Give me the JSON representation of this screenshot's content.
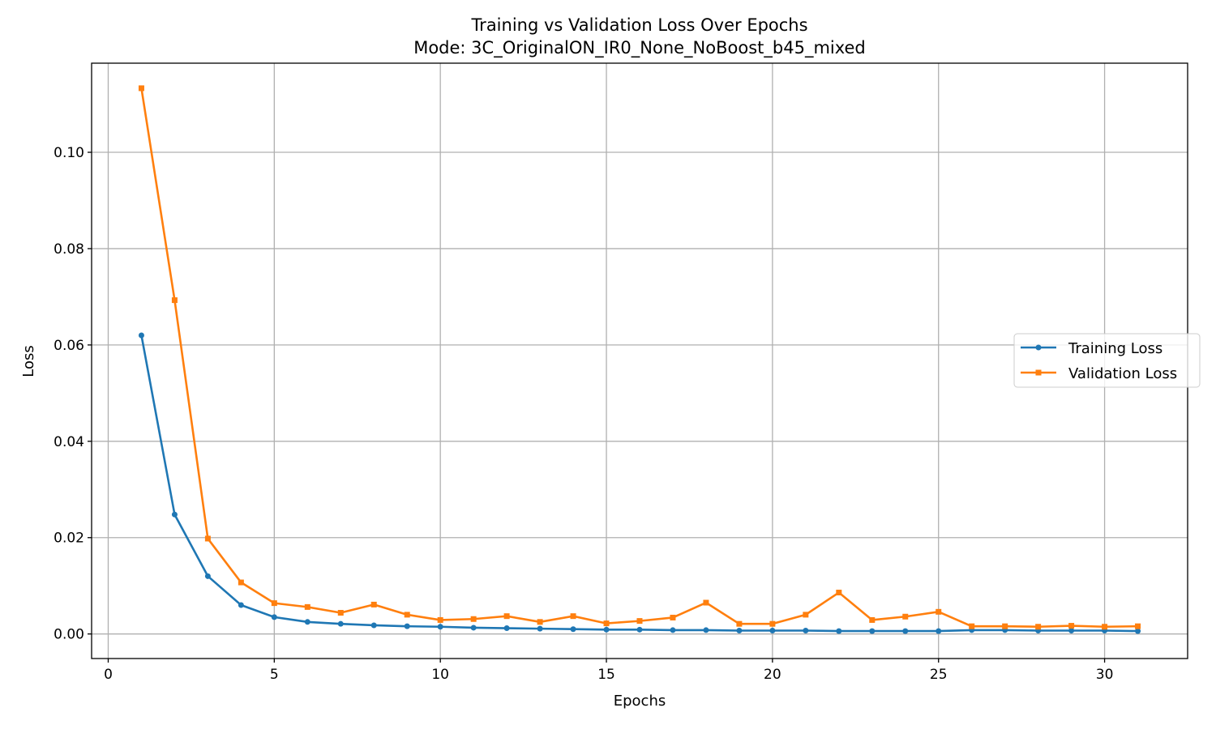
{
  "chart_data": {
    "type": "line",
    "title": "Training vs Validation Loss Over Epochs",
    "subtitle": "Mode: 3C_OriginalON_IR0_None_NoBoost_b45_mixed",
    "xlabel": "Epochs",
    "ylabel": "Loss",
    "xlim": [
      -0.5,
      32.5
    ],
    "ylim": [
      -0.0051,
      0.1185
    ],
    "xticks": [
      0,
      5,
      10,
      15,
      20,
      25,
      30
    ],
    "xtick_labels": [
      "0",
      "5",
      "10",
      "15",
      "20",
      "25",
      "30"
    ],
    "yticks": [
      0.0,
      0.02,
      0.04,
      0.06,
      0.08,
      0.1
    ],
    "ytick_labels": [
      "0.00",
      "0.02",
      "0.04",
      "0.06",
      "0.08",
      "0.10"
    ],
    "grid": true,
    "legend_position": "center-right",
    "x": [
      1,
      2,
      3,
      4,
      5,
      6,
      7,
      8,
      9,
      10,
      11,
      12,
      13,
      14,
      15,
      16,
      17,
      18,
      19,
      20,
      21,
      22,
      23,
      24,
      25,
      26,
      27,
      28,
      29,
      30,
      31
    ],
    "series": [
      {
        "name": "Training Loss",
        "color": "#1f77b4",
        "marker": "circle",
        "values": [
          0.062,
          0.0248,
          0.012,
          0.006,
          0.0035,
          0.0025,
          0.0021,
          0.0018,
          0.0016,
          0.0015,
          0.0013,
          0.0012,
          0.0011,
          0.001,
          0.0009,
          0.0009,
          0.0008,
          0.0008,
          0.0007,
          0.0007,
          0.0007,
          0.0006,
          0.0006,
          0.0006,
          0.0006,
          0.0008,
          0.0008,
          0.0007,
          0.0007,
          0.0007,
          0.0006
        ]
      },
      {
        "name": "Validation Loss",
        "color": "#ff7f0e",
        "marker": "square",
        "values": [
          0.1133,
          0.0693,
          0.0198,
          0.0107,
          0.0064,
          0.0056,
          0.0044,
          0.0061,
          0.004,
          0.0029,
          0.0031,
          0.0037,
          0.0025,
          0.0037,
          0.0022,
          0.0027,
          0.0034,
          0.0065,
          0.0021,
          0.0021,
          0.004,
          0.0086,
          0.0029,
          0.0036,
          0.0046,
          0.0016,
          0.0016,
          0.0015,
          0.0017,
          0.0015,
          0.0016
        ]
      }
    ]
  }
}
